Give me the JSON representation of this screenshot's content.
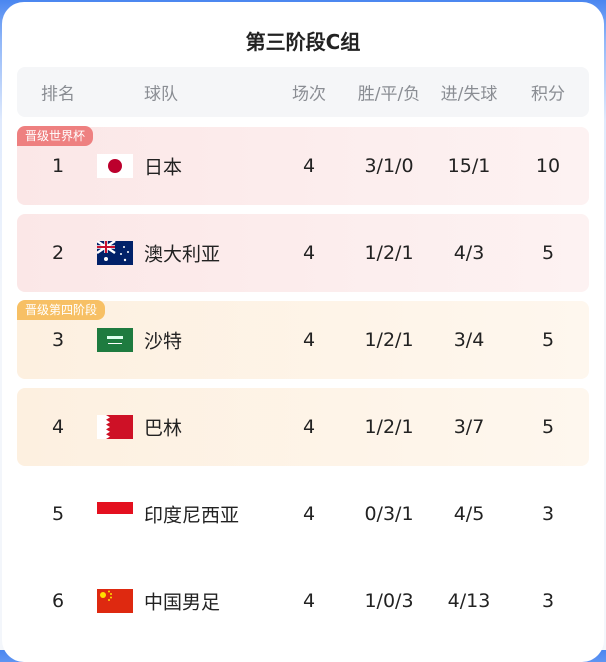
{
  "title": "第三阶段C组",
  "headers": {
    "rank": "排名",
    "team": "球队",
    "played": "场次",
    "wdl": "胜/平/负",
    "goals": "进/失球",
    "points": "积分"
  },
  "badges": {
    "qualified": "晋级世界杯",
    "fourth_stage": "晋级第四阶段"
  },
  "colors": {
    "qualified": "#ee8080",
    "fourth_stage": "#f7c065"
  },
  "rows": [
    {
      "rank": "1",
      "team": "日本",
      "flag": "japan-flag",
      "played": "4",
      "wdl": "3/1/0",
      "goals": "15/1",
      "points": "10"
    },
    {
      "rank": "2",
      "team": "澳大利亚",
      "flag": "australia-flag",
      "played": "4",
      "wdl": "1/2/1",
      "goals": "4/3",
      "points": "5"
    },
    {
      "rank": "3",
      "team": "沙特",
      "flag": "saudi-arabia-flag",
      "played": "4",
      "wdl": "1/2/1",
      "goals": "3/4",
      "points": "5"
    },
    {
      "rank": "4",
      "team": "巴林",
      "flag": "bahrain-flag",
      "played": "4",
      "wdl": "1/2/1",
      "goals": "3/7",
      "points": "5"
    },
    {
      "rank": "5",
      "team": "印度尼西亚",
      "flag": "indonesia-flag",
      "played": "4",
      "wdl": "0/3/1",
      "goals": "4/5",
      "points": "3"
    },
    {
      "rank": "6",
      "team": "中国男足",
      "flag": "china-flag",
      "played": "4",
      "wdl": "1/0/3",
      "goals": "4/13",
      "points": "3"
    }
  ]
}
